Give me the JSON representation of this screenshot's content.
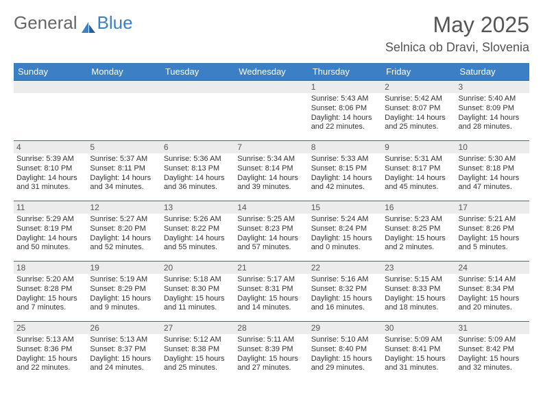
{
  "logo": {
    "text1": "General",
    "text2": "Blue"
  },
  "title": {
    "month": "May 2025",
    "location": "Selnica ob Dravi, Slovenia"
  },
  "colors": {
    "header_bg": "#3b7fc4",
    "header_fg": "#ffffff",
    "band_bg": "#ececec",
    "rule": "#556677",
    "text": "#333333"
  },
  "weekdays": [
    "Sunday",
    "Monday",
    "Tuesday",
    "Wednesday",
    "Thursday",
    "Friday",
    "Saturday"
  ],
  "weeks": [
    [
      null,
      null,
      null,
      null,
      {
        "n": "1",
        "sr": "5:43 AM",
        "ss": "8:06 PM",
        "dl": "14 hours and 22 minutes."
      },
      {
        "n": "2",
        "sr": "5:42 AM",
        "ss": "8:07 PM",
        "dl": "14 hours and 25 minutes."
      },
      {
        "n": "3",
        "sr": "5:40 AM",
        "ss": "8:09 PM",
        "dl": "14 hours and 28 minutes."
      }
    ],
    [
      {
        "n": "4",
        "sr": "5:39 AM",
        "ss": "8:10 PM",
        "dl": "14 hours and 31 minutes."
      },
      {
        "n": "5",
        "sr": "5:37 AM",
        "ss": "8:11 PM",
        "dl": "14 hours and 34 minutes."
      },
      {
        "n": "6",
        "sr": "5:36 AM",
        "ss": "8:13 PM",
        "dl": "14 hours and 36 minutes."
      },
      {
        "n": "7",
        "sr": "5:34 AM",
        "ss": "8:14 PM",
        "dl": "14 hours and 39 minutes."
      },
      {
        "n": "8",
        "sr": "5:33 AM",
        "ss": "8:15 PM",
        "dl": "14 hours and 42 minutes."
      },
      {
        "n": "9",
        "sr": "5:31 AM",
        "ss": "8:17 PM",
        "dl": "14 hours and 45 minutes."
      },
      {
        "n": "10",
        "sr": "5:30 AM",
        "ss": "8:18 PM",
        "dl": "14 hours and 47 minutes."
      }
    ],
    [
      {
        "n": "11",
        "sr": "5:29 AM",
        "ss": "8:19 PM",
        "dl": "14 hours and 50 minutes."
      },
      {
        "n": "12",
        "sr": "5:27 AM",
        "ss": "8:20 PM",
        "dl": "14 hours and 52 minutes."
      },
      {
        "n": "13",
        "sr": "5:26 AM",
        "ss": "8:22 PM",
        "dl": "14 hours and 55 minutes."
      },
      {
        "n": "14",
        "sr": "5:25 AM",
        "ss": "8:23 PM",
        "dl": "14 hours and 57 minutes."
      },
      {
        "n": "15",
        "sr": "5:24 AM",
        "ss": "8:24 PM",
        "dl": "15 hours and 0 minutes."
      },
      {
        "n": "16",
        "sr": "5:23 AM",
        "ss": "8:25 PM",
        "dl": "15 hours and 2 minutes."
      },
      {
        "n": "17",
        "sr": "5:21 AM",
        "ss": "8:26 PM",
        "dl": "15 hours and 5 minutes."
      }
    ],
    [
      {
        "n": "18",
        "sr": "5:20 AM",
        "ss": "8:28 PM",
        "dl": "15 hours and 7 minutes."
      },
      {
        "n": "19",
        "sr": "5:19 AM",
        "ss": "8:29 PM",
        "dl": "15 hours and 9 minutes."
      },
      {
        "n": "20",
        "sr": "5:18 AM",
        "ss": "8:30 PM",
        "dl": "15 hours and 11 minutes."
      },
      {
        "n": "21",
        "sr": "5:17 AM",
        "ss": "8:31 PM",
        "dl": "15 hours and 14 minutes."
      },
      {
        "n": "22",
        "sr": "5:16 AM",
        "ss": "8:32 PM",
        "dl": "15 hours and 16 minutes."
      },
      {
        "n": "23",
        "sr": "5:15 AM",
        "ss": "8:33 PM",
        "dl": "15 hours and 18 minutes."
      },
      {
        "n": "24",
        "sr": "5:14 AM",
        "ss": "8:34 PM",
        "dl": "15 hours and 20 minutes."
      }
    ],
    [
      {
        "n": "25",
        "sr": "5:13 AM",
        "ss": "8:36 PM",
        "dl": "15 hours and 22 minutes."
      },
      {
        "n": "26",
        "sr": "5:13 AM",
        "ss": "8:37 PM",
        "dl": "15 hours and 24 minutes."
      },
      {
        "n": "27",
        "sr": "5:12 AM",
        "ss": "8:38 PM",
        "dl": "15 hours and 25 minutes."
      },
      {
        "n": "28",
        "sr": "5:11 AM",
        "ss": "8:39 PM",
        "dl": "15 hours and 27 minutes."
      },
      {
        "n": "29",
        "sr": "5:10 AM",
        "ss": "8:40 PM",
        "dl": "15 hours and 29 minutes."
      },
      {
        "n": "30",
        "sr": "5:09 AM",
        "ss": "8:41 PM",
        "dl": "15 hours and 31 minutes."
      },
      {
        "n": "31",
        "sr": "5:09 AM",
        "ss": "8:42 PM",
        "dl": "15 hours and 32 minutes."
      }
    ]
  ],
  "labels": {
    "sunrise": "Sunrise: ",
    "sunset": "Sunset: ",
    "daylight": "Daylight: "
  }
}
